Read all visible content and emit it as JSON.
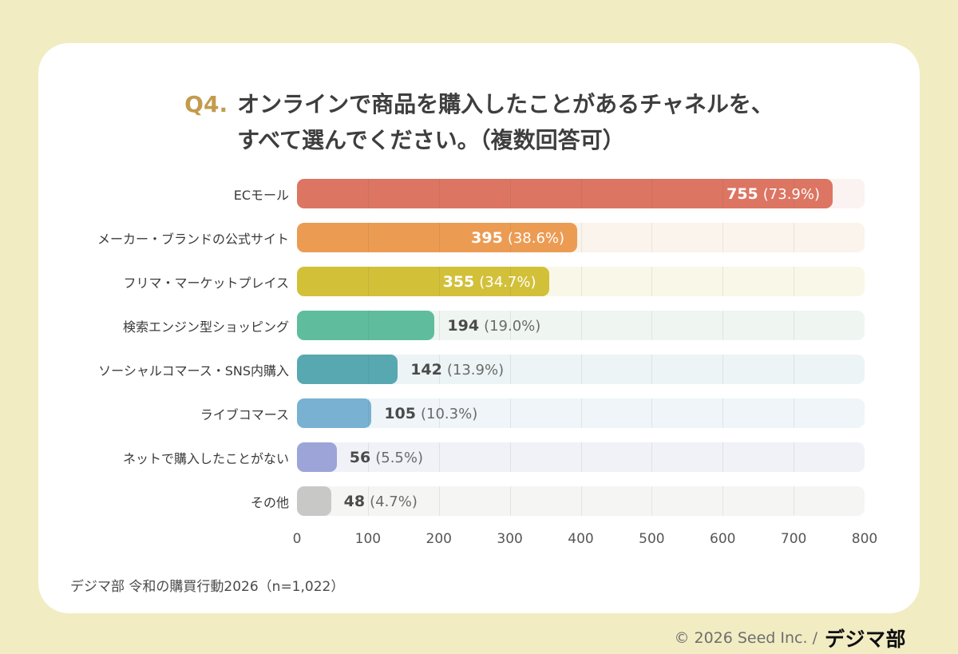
{
  "title": {
    "prefix": "Q4.",
    "line1": "オンラインで商品を購入したことがあるチャネルを、",
    "line2": "すべて選んでください。（複数回答可）"
  },
  "chart_data": {
    "type": "bar",
    "orientation": "horizontal",
    "title": "Q4. オンラインで商品を購入したことがあるチャネルを、すべて選んでください。（複数回答可）",
    "categories": [
      "ECモール",
      "メーカー・ブランドの公式サイト",
      "フリマ・マーケットプレイス",
      "検索エンジン型ショッピング",
      "ソーシャルコマース・SNS内購入",
      "ライブコマース",
      "ネットで購入したことがない",
      "その他"
    ],
    "values": [
      755,
      395,
      355,
      194,
      142,
      105,
      56,
      48
    ],
    "percents": [
      "73.9%",
      "38.6%",
      "34.7%",
      "19.0%",
      "13.9%",
      "10.3%",
      "5.5%",
      "4.7%"
    ],
    "bar_colors": [
      "#dc7562",
      "#ec9b53",
      "#d2c039",
      "#5fbd9e",
      "#57a8b1",
      "#78b1d1",
      "#9ca4d8",
      "#c8c8c7"
    ],
    "track_colors": [
      "#faf3f1",
      "#faf4ec",
      "#f9f7e8",
      "#eff6f2",
      "#edf4f5",
      "#eff5f8",
      "#f1f1f8",
      "#f5f5f4"
    ],
    "label_inside": [
      true,
      true,
      true,
      false,
      false,
      false,
      false,
      false
    ],
    "xlim": [
      0,
      800
    ],
    "x_ticks": [
      0,
      100,
      200,
      300,
      400,
      500,
      600,
      700,
      800
    ],
    "grid": true,
    "legend": false,
    "xlabel": "",
    "ylabel": ""
  },
  "source_note": "デジマ部 令和の購買行動2026（n=1,022）",
  "footer": {
    "copyright": "© 2026 Seed Inc. /",
    "brand": "デジマ部"
  },
  "colors": {
    "page_background": "#f2ecc3",
    "card_background": "#ffffff",
    "title_text": "#3e3e3e",
    "title_prefix": "#c39b4e",
    "value_inside_text": "#ffffff",
    "value_outside_number": "#4b4b4b"
  }
}
